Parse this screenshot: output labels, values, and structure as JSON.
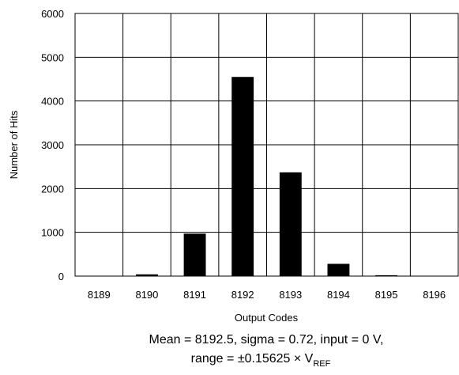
{
  "chart_data": {
    "type": "bar",
    "categories": [
      "8189",
      "8190",
      "8191",
      "8192",
      "8193",
      "8194",
      "8195",
      "8196"
    ],
    "values": [
      5,
      40,
      970,
      4550,
      2370,
      280,
      20,
      5
    ],
    "xlabel": "Output Codes",
    "ylabel": "Number of Hits",
    "ylim": [
      0,
      6000
    ],
    "yticks": [
      "0",
      "1000",
      "2000",
      "3000",
      "4000",
      "5000",
      "6000"
    ],
    "grid": true,
    "legend": "none",
    "annotation": {
      "line1": "Mean = 8192.5, sigma = 0.72, input = 0 V,",
      "line2_prefix": "range = ±0.15625 × V",
      "line2_subscript": "REF"
    },
    "colors": {
      "bar": "#000000",
      "grid": "#000000",
      "background": "#ffffff"
    }
  }
}
